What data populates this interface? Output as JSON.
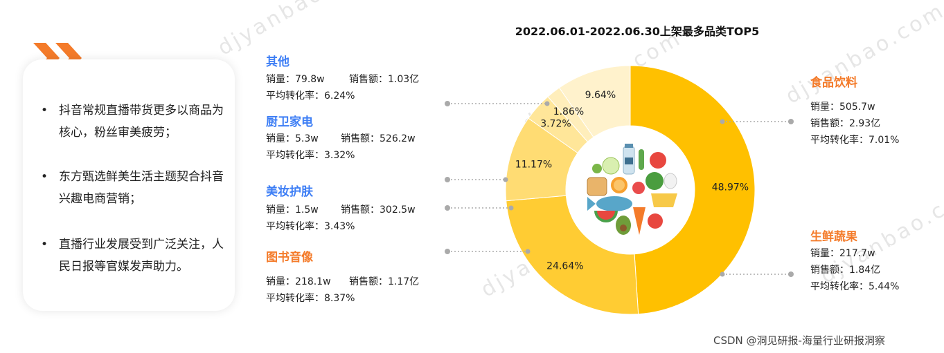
{
  "watermark": "djyanbao.com",
  "left_panel": {
    "bullets": [
      "抖音常规直播带货更多以商品为核心，粉丝审美疲劳；",
      "东方甄选鲜美生活主题契合抖音兴趣电商营销；",
      "直播行业发展受到广泛关注，人民日报等官媒发声助力。"
    ],
    "bullet_mark": "•"
  },
  "chart_data": {
    "type": "pie",
    "title": "2022.06.01-2022.06.30上架最多品类TOP5",
    "slices": [
      {
        "label": "食品饮料",
        "value": 48.97,
        "display": "48.97%",
        "color": "#ffc000"
      },
      {
        "label": "生鲜蔬果",
        "value": 24.64,
        "display": "24.64%",
        "color": "#ffcc33"
      },
      {
        "label": "图书音像",
        "value": 11.17,
        "display": "11.17%",
        "color": "#ffdc73"
      },
      {
        "label": "美妆护肤",
        "value": 3.72,
        "display": "3.72%",
        "color": "#ffe699"
      },
      {
        "label": "厨卫家电",
        "value": 1.86,
        "display": "1.86%",
        "color": "#ffeebb"
      },
      {
        "label": "其他",
        "value": 9.64,
        "display": "9.64%",
        "color": "#fff2cc"
      }
    ],
    "donut": true
  },
  "categories": {
    "other": {
      "name": "其他",
      "sales": "销量：79.8w",
      "revenue": "销售额：1.03亿",
      "conversion": "平均转化率：6.24%"
    },
    "appliance": {
      "name": "厨卫家电",
      "sales": "销量：5.3w",
      "revenue": "销售额：526.2w",
      "conversion": "平均转化率：3.32%"
    },
    "beauty": {
      "name": "美妆护肤",
      "sales": "销量：1.5w",
      "revenue": "销售额：302.5w",
      "conversion": "平均转化率：3.43%"
    },
    "books": {
      "name": "图书音像",
      "sales": "销量：218.1w",
      "revenue": "销售额：1.17亿",
      "conversion": "平均转化率：8.37%"
    },
    "food": {
      "name": "食品饮料",
      "sales": "销量：505.7w",
      "revenue": "销售额：2.93亿",
      "conversion": "平均转化率：7.01%"
    },
    "fresh": {
      "name": "生鲜蔬果",
      "sales": "销量：217.7w",
      "revenue": "销售额：1.84亿",
      "conversion": "平均转化率：5.44%"
    }
  },
  "colors": {
    "accent_orange": "#f47b2a",
    "label_blue": "#3d7ef5",
    "connector": "#aaaaaa"
  },
  "center_icon": "fruits-vegetables-food-icon",
  "footer": "CSDN @洞见研报-海量行业研报洞察"
}
